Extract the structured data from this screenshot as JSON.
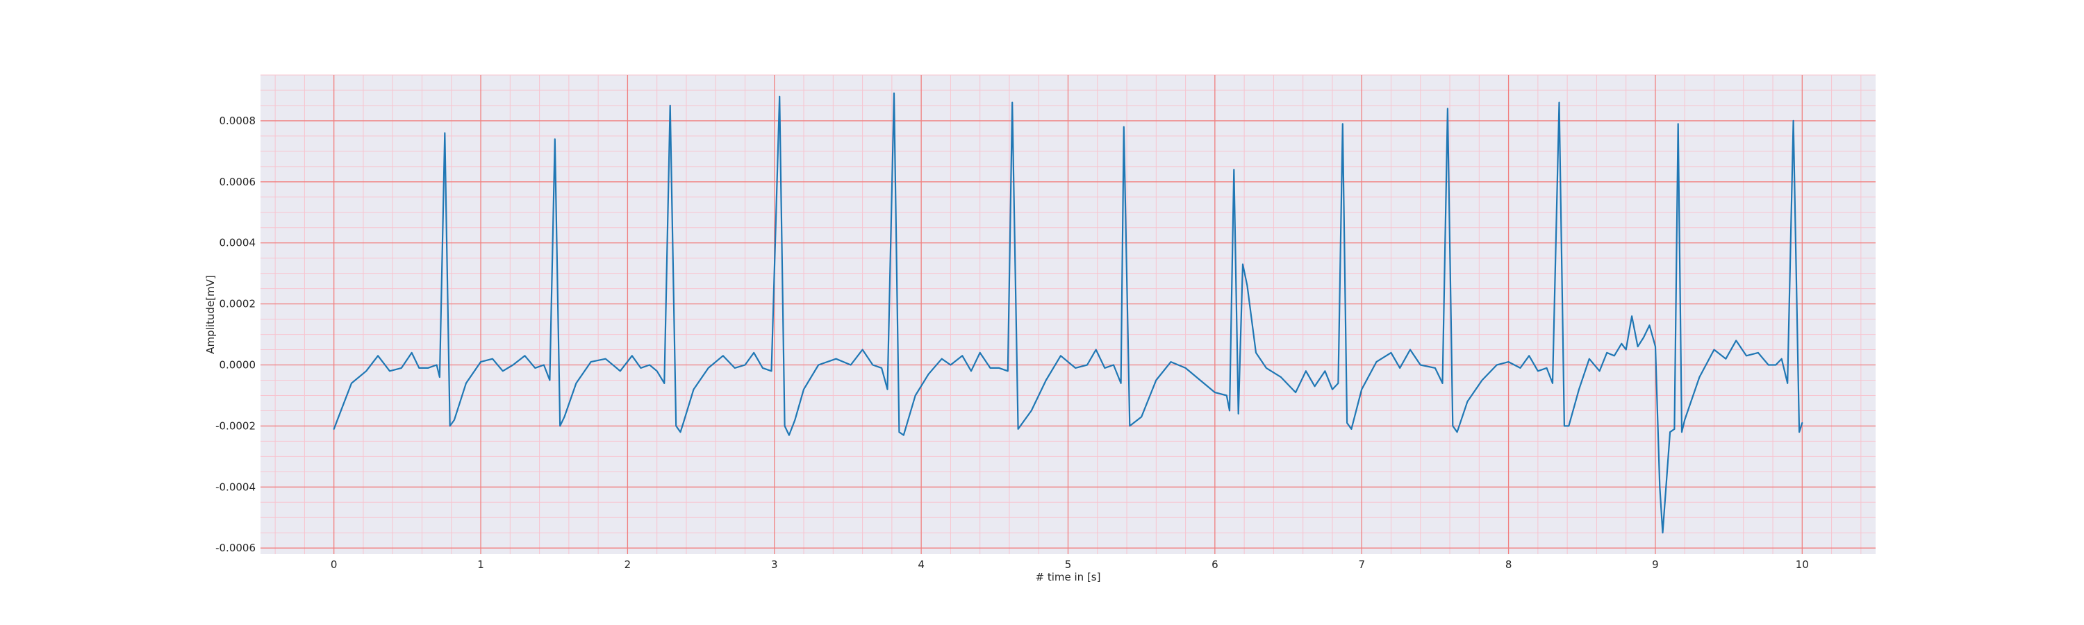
{
  "chart_data": {
    "type": "line",
    "title": "",
    "xlabel": "# time in [s]",
    "ylabel": "Amplitude[mV]",
    "xlim": [
      -0.5,
      10.5
    ],
    "ylim": [
      -0.00062,
      0.00095
    ],
    "x_ticks": [
      0,
      1,
      2,
      3,
      4,
      5,
      6,
      7,
      8,
      9,
      10
    ],
    "x_tick_labels": [
      "0",
      "1",
      "2",
      "3",
      "4",
      "5",
      "6",
      "7",
      "8",
      "9",
      "10"
    ],
    "y_ticks": [
      -0.0006,
      -0.0004,
      -0.0002,
      0.0,
      0.0002,
      0.0004,
      0.0006,
      0.0008
    ],
    "y_tick_labels": [
      "-0.0006",
      "-0.0004",
      "-0.0002",
      "0.0000",
      "0.0002",
      "0.0004",
      "0.0006",
      "0.0008"
    ],
    "grid": true,
    "colors": {
      "line": "#1f77b4",
      "background": "#eaeaf2",
      "major_grid": "#f08080",
      "minor_grid": "#f7c4cf"
    },
    "series": [
      {
        "name": "",
        "x": [
          0.0,
          0.04,
          0.12,
          0.22,
          0.3,
          0.38,
          0.46,
          0.53,
          0.58,
          0.64,
          0.7,
          0.72,
          0.755,
          0.79,
          0.82,
          0.9,
          1.0,
          1.08,
          1.15,
          1.22,
          1.3,
          1.37,
          1.43,
          1.47,
          1.505,
          1.54,
          1.57,
          1.65,
          1.75,
          1.85,
          1.95,
          2.03,
          2.09,
          2.15,
          2.2,
          2.25,
          2.29,
          2.33,
          2.36,
          2.38,
          2.45,
          2.55,
          2.65,
          2.73,
          2.8,
          2.86,
          2.92,
          2.98,
          3.035,
          3.07,
          3.1,
          3.14,
          3.2,
          3.3,
          3.42,
          3.52,
          3.6,
          3.67,
          3.73,
          3.77,
          3.815,
          3.85,
          3.88,
          3.96,
          4.05,
          4.14,
          4.2,
          4.28,
          4.34,
          4.4,
          4.47,
          4.53,
          4.59,
          4.62,
          4.66,
          4.75,
          4.85,
          4.95,
          5.05,
          5.13,
          5.19,
          5.25,
          5.31,
          5.36,
          5.38,
          5.42,
          5.5,
          5.6,
          5.7,
          5.8,
          5.9,
          6.0,
          6.08,
          6.1,
          6.13,
          6.16,
          6.19,
          6.22,
          6.28,
          6.35,
          6.45,
          6.55,
          6.62,
          6.68,
          6.75,
          6.8,
          6.84,
          6.87,
          6.9,
          6.93,
          7.0,
          7.1,
          7.2,
          7.26,
          7.33,
          7.4,
          7.5,
          7.55,
          7.585,
          7.62,
          7.65,
          7.72,
          7.82,
          7.92,
          8.0,
          8.08,
          8.14,
          8.2,
          8.26,
          8.3,
          8.345,
          8.38,
          8.41,
          8.48,
          8.55,
          8.62,
          8.67,
          8.72,
          8.77,
          8.8,
          8.84,
          8.88,
          8.92,
          8.96,
          9.0,
          9.03,
          9.05,
          9.1,
          9.13,
          9.155,
          9.18,
          9.2,
          9.3,
          9.4,
          9.48,
          9.55,
          9.62,
          9.7,
          9.77,
          9.82,
          9.86,
          9.9,
          9.94,
          9.98,
          10.0
        ],
        "y": [
          -0.00021,
          -0.00016,
          -6e-05,
          -2e-05,
          3e-05,
          -2e-05,
          -1e-05,
          4e-05,
          -1e-05,
          -1e-05,
          0.0,
          -4e-05,
          0.00076,
          -0.0002,
          -0.00018,
          -6e-05,
          1e-05,
          2e-05,
          -2e-05,
          0.0,
          3e-05,
          -1e-05,
          0.0,
          -5e-05,
          0.00074,
          -0.0002,
          -0.00017,
          -6e-05,
          1e-05,
          2e-05,
          -2e-05,
          3e-05,
          -1e-05,
          0.0,
          -2e-05,
          -6e-05,
          0.00085,
          -0.0002,
          -0.00022,
          -0.00019,
          -8e-05,
          -1e-05,
          3e-05,
          -1e-05,
          0.0,
          4e-05,
          -1e-05,
          -2e-05,
          0.00088,
          -0.0002,
          -0.00023,
          -0.00018,
          -8e-05,
          0.0,
          2e-05,
          0.0,
          5e-05,
          0.0,
          -1e-05,
          -8e-05,
          0.00089,
          -0.00022,
          -0.00023,
          -0.0001,
          -3e-05,
          2e-05,
          0.0,
          3e-05,
          -2e-05,
          4e-05,
          -1e-05,
          -1e-05,
          -2e-05,
          0.00086,
          -0.00021,
          -0.00015,
          -5e-05,
          3e-05,
          -1e-05,
          0.0,
          5e-05,
          -1e-05,
          0.0,
          -6e-05,
          0.00078,
          -0.0002,
          -0.00017,
          -5e-05,
          1e-05,
          -1e-05,
          -5e-05,
          -9e-05,
          -0.0001,
          -0.00015,
          0.00064,
          -0.00016,
          0.00033,
          0.00026,
          4e-05,
          -1e-05,
          -4e-05,
          -9e-05,
          -2e-05,
          -7e-05,
          -2e-05,
          -8e-05,
          -6e-05,
          0.00079,
          -0.00019,
          -0.00021,
          -8e-05,
          1e-05,
          4e-05,
          -1e-05,
          5e-05,
          0.0,
          -1e-05,
          -6e-05,
          0.00084,
          -0.0002,
          -0.00022,
          -0.00012,
          -5e-05,
          0.0,
          1e-05,
          -1e-05,
          3e-05,
          -2e-05,
          -1e-05,
          -6e-05,
          0.00086,
          -0.0002,
          -0.0002,
          -8e-05,
          2e-05,
          -2e-05,
          4e-05,
          3e-05,
          7e-05,
          5e-05,
          0.00016,
          6e-05,
          9e-05,
          0.00013,
          6e-05,
          -0.0004,
          -0.00055,
          -0.00022,
          -0.00021,
          0.00079,
          -0.00022,
          -0.00018,
          -4e-05,
          5e-05,
          2e-05,
          8e-05,
          3e-05,
          4e-05,
          0.0,
          0.0,
          2e-05,
          -6e-05,
          0.0008,
          -0.00022,
          -0.00019
        ]
      }
    ]
  }
}
